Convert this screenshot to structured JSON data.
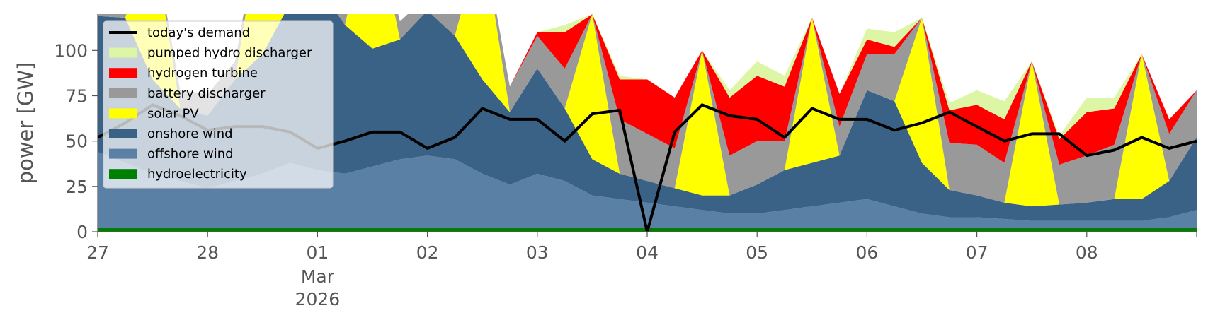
{
  "chart_data": {
    "type": "area",
    "title": "",
    "xlabel": "",
    "ylabel": "power [GW]",
    "x_range": [
      "2026-02-27",
      "2026-03-09"
    ],
    "ylim": [
      0,
      120
    ],
    "y_ticks": [
      0,
      25,
      50,
      75,
      100
    ],
    "x_ticks": [
      {
        "date": "2026-02-27",
        "label": "27"
      },
      {
        "date": "2026-02-28",
        "label": "28"
      },
      {
        "date": "2026-03-01",
        "label": "01",
        "sub": [
          "Mar",
          "2026"
        ]
      },
      {
        "date": "2026-03-02",
        "label": "02"
      },
      {
        "date": "2026-03-03",
        "label": "03"
      },
      {
        "date": "2026-03-04",
        "label": "04"
      },
      {
        "date": "2026-03-05",
        "label": "05"
      },
      {
        "date": "2026-03-06",
        "label": "06"
      },
      {
        "date": "2026-03-07",
        "label": "07"
      },
      {
        "date": "2026-03-08",
        "label": "08"
      },
      {
        "date": "2026-03-09",
        "label": ""
      }
    ],
    "grid": false,
    "legend_position": "top-left",
    "x": [
      "2026-02-27T00:00",
      "2026-02-27T06:00",
      "2026-02-27T12:00",
      "2026-02-27T18:00",
      "2026-02-28T00:00",
      "2026-02-28T06:00",
      "2026-02-28T12:00",
      "2026-02-28T18:00",
      "2026-03-01T00:00",
      "2026-03-01T06:00",
      "2026-03-01T12:00",
      "2026-03-01T18:00",
      "2026-03-02T00:00",
      "2026-03-02T06:00",
      "2026-03-02T12:00",
      "2026-03-02T18:00",
      "2026-03-03T00:00",
      "2026-03-03T06:00",
      "2026-03-03T12:00",
      "2026-03-03T18:00",
      "2026-03-04T00:00",
      "2026-03-04T06:00",
      "2026-03-04T12:00",
      "2026-03-04T18:00",
      "2026-03-05T00:00",
      "2026-03-05T06:00",
      "2026-03-05T12:00",
      "2026-03-05T18:00",
      "2026-03-06T00:00",
      "2026-03-06T06:00",
      "2026-03-06T12:00",
      "2026-03-06T18:00",
      "2026-03-07T00:00",
      "2026-03-07T06:00",
      "2026-03-07T12:00",
      "2026-03-07T18:00",
      "2026-03-08T00:00",
      "2026-03-08T06:00",
      "2026-03-08T12:00",
      "2026-03-08T18:00",
      "2026-03-09T00:00"
    ],
    "stack_order": [
      "hydroelectricity",
      "offshore wind",
      "onshore wind",
      "solar PV",
      "battery discharger",
      "hydrogen turbine",
      "pumped hydro discharger"
    ],
    "series": [
      {
        "name": "hydroelectricity",
        "color": "#008000",
        "values": [
          2,
          2,
          2,
          2,
          2,
          2,
          2,
          2,
          2,
          2,
          2,
          2,
          2,
          2,
          2,
          2,
          2,
          2,
          2,
          2,
          2,
          2,
          2,
          2,
          2,
          2,
          2,
          2,
          2,
          2,
          2,
          2,
          2,
          2,
          2,
          2,
          2,
          2,
          2,
          2,
          2
        ]
      },
      {
        "name": "offshore wind",
        "color": "#5b80a5",
        "values": [
          42,
          36,
          30,
          26,
          22,
          26,
          30,
          36,
          32,
          30,
          34,
          38,
          40,
          38,
          30,
          24,
          30,
          26,
          18,
          16,
          14,
          12,
          10,
          8,
          8,
          10,
          12,
          14,
          16,
          12,
          8,
          6,
          6,
          5,
          4,
          4,
          4,
          4,
          4,
          6,
          10
        ]
      },
      {
        "name": "onshore wind",
        "color": "#3a6186",
        "values": [
          75,
          80,
          52,
          40,
          40,
          56,
          66,
          88,
          102,
          82,
          65,
          66,
          80,
          68,
          52,
          40,
          58,
          40,
          20,
          14,
          12,
          10,
          8,
          10,
          16,
          22,
          24,
          26,
          60,
          58,
          28,
          15,
          12,
          9,
          8,
          9,
          10,
          12,
          12,
          20,
          40
        ]
      },
      {
        "name": "solar PV",
        "color": "#ffff00",
        "values": [
          0,
          0,
          80,
          0,
          0,
          0,
          80,
          0,
          0,
          0,
          80,
          0,
          0,
          0,
          80,
          0,
          0,
          0,
          80,
          0,
          0,
          0,
          80,
          0,
          0,
          0,
          80,
          0,
          0,
          0,
          80,
          0,
          0,
          0,
          80,
          0,
          0,
          0,
          80,
          0,
          0
        ]
      },
      {
        "name": "battery discharger",
        "color": "#999999",
        "values": [
          20,
          18,
          0,
          10,
          12,
          10,
          0,
          8,
          6,
          8,
          0,
          10,
          8,
          12,
          0,
          14,
          18,
          22,
          0,
          30,
          26,
          22,
          0,
          22,
          24,
          16,
          0,
          16,
          20,
          26,
          0,
          26,
          28,
          22,
          0,
          22,
          26,
          30,
          0,
          26,
          26
        ]
      },
      {
        "name": "hydrogen turbine",
        "color": "#ff0000",
        "values": [
          0,
          0,
          0,
          0,
          0,
          0,
          0,
          0,
          0,
          0,
          0,
          0,
          0,
          0,
          0,
          0,
          2,
          20,
          0,
          22,
          30,
          28,
          0,
          32,
          36,
          30,
          0,
          18,
          8,
          4,
          0,
          18,
          22,
          24,
          0,
          14,
          24,
          20,
          0,
          8,
          0
        ]
      },
      {
        "name": "pumped hydro discharger",
        "color": "#ddf6a6",
        "values": [
          0,
          0,
          0,
          0,
          0,
          0,
          0,
          0,
          0,
          0,
          0,
          0,
          0,
          0,
          0,
          0,
          0,
          4,
          0,
          2,
          0,
          0,
          0,
          4,
          8,
          6,
          0,
          0,
          6,
          8,
          0,
          4,
          8,
          10,
          0,
          2,
          8,
          6,
          0,
          0,
          0
        ]
      }
    ],
    "demand": {
      "name": "today's demand",
      "color": "#000000",
      "values": [
        52,
        60,
        70,
        64,
        56,
        58,
        58,
        55,
        46,
        50,
        55,
        55,
        46,
        52,
        68,
        62,
        62,
        50,
        65,
        67,
        0,
        55,
        70,
        64,
        62,
        52,
        68,
        62,
        62,
        56,
        60,
        66,
        58,
        50,
        54,
        54,
        42,
        45,
        52,
        46,
        50
      ]
    },
    "legend": [
      "today's demand",
      "pumped hydro discharger",
      "hydrogen turbine",
      "battery discharger",
      "solar PV",
      "onshore wind",
      "offshore wind",
      "hydroelectricity"
    ]
  }
}
